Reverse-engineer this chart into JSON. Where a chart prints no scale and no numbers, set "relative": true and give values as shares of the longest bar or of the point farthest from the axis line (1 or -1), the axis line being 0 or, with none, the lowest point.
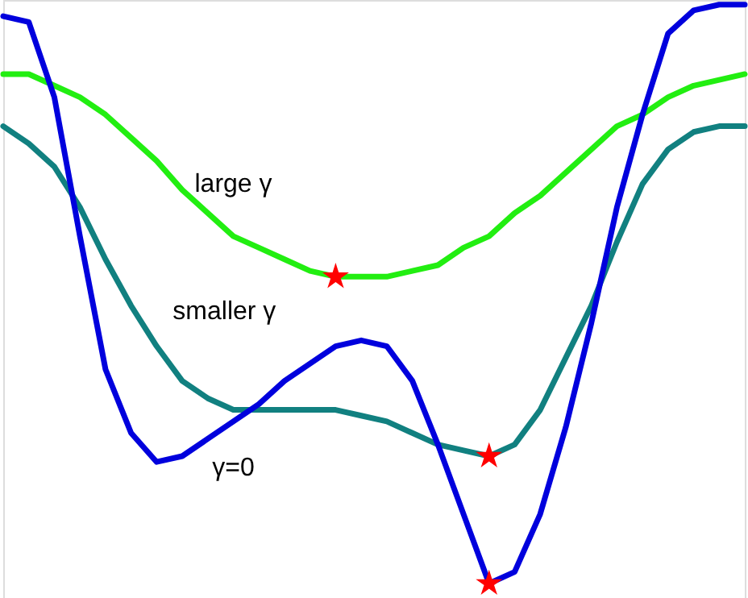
{
  "chart_data": {
    "type": "line",
    "relative": true,
    "marker": "none",
    "line_style": "solid",
    "categories": [
      null,
      null,
      null,
      null,
      null,
      null,
      null,
      null,
      null,
      null,
      null,
      null,
      null,
      null,
      null,
      null,
      null,
      null,
      null,
      null,
      null,
      null,
      null,
      null,
      null,
      null,
      null,
      null,
      null,
      null
    ],
    "series": [
      {
        "name": "large γ",
        "color": "#22ee11",
        "values": [
          0.88,
          0.88,
          0.86,
          0.84,
          0.81,
          0.77,
          0.73,
          0.68,
          0.64,
          0.6,
          0.58,
          0.56,
          0.54,
          0.53,
          0.53,
          0.53,
          0.54,
          0.55,
          0.58,
          0.6,
          0.64,
          0.67,
          0.71,
          0.75,
          0.79,
          0.81,
          0.84,
          0.86,
          0.87,
          0.88
        ]
      },
      {
        "name": "smaller γ",
        "color": "#118080",
        "values": [
          0.79,
          0.76,
          0.72,
          0.65,
          0.56,
          0.48,
          0.41,
          0.35,
          0.32,
          0.3,
          0.3,
          0.3,
          0.3,
          0.3,
          0.29,
          0.28,
          0.26,
          0.24,
          0.23,
          0.22,
          0.24,
          0.3,
          0.39,
          0.48,
          0.59,
          0.69,
          0.75,
          0.78,
          0.79,
          0.79
        ]
      },
      {
        "name": "γ=0",
        "color": "#0000dd",
        "values": [
          0.98,
          0.97,
          0.84,
          0.6,
          0.37,
          0.26,
          0.21,
          0.22,
          0.25,
          0.28,
          0.31,
          0.35,
          0.38,
          0.41,
          0.42,
          0.41,
          0.35,
          0.24,
          0.12,
          0.0,
          0.02,
          0.12,
          0.27,
          0.45,
          0.65,
          0.81,
          0.95,
          0.99,
          1.0,
          1.0
        ]
      }
    ]
  }
}
